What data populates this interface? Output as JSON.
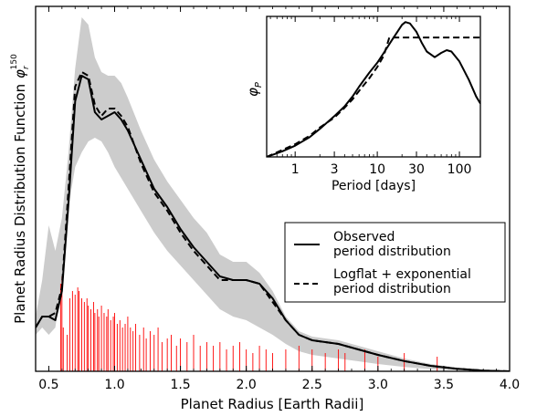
{
  "chart_data": [
    {
      "type": "line",
      "xlabel": "Planet Radius [Earth Radii]",
      "ylabel": "Planet Radius Distribution Function",
      "ylabel_symbol": "φ",
      "ylabel_sub": "r",
      "ylabel_sup": "150",
      "xlim": [
        0.4,
        4.0
      ],
      "ylim": [
        0,
        1.0
      ],
      "xticks": [
        0.5,
        1.0,
        1.5,
        2.0,
        2.5,
        3.0,
        3.5,
        4.0
      ],
      "xtick_labels": [
        "0.5",
        "1.0",
        "1.5",
        "2.0",
        "2.5",
        "3.0",
        "3.5",
        "4.0"
      ],
      "grid": false,
      "legend_position": "middle-right",
      "band": {
        "name": "uncertainty range",
        "color": "#cccccc",
        "x": [
          0.4,
          0.45,
          0.5,
          0.55,
          0.6,
          0.65,
          0.7,
          0.75,
          0.8,
          0.85,
          0.9,
          0.95,
          1.0,
          1.05,
          1.1,
          1.2,
          1.3,
          1.4,
          1.5,
          1.6,
          1.7,
          1.8,
          1.9,
          2.0,
          2.1,
          2.2,
          2.3,
          2.4,
          2.5,
          2.6,
          2.7,
          2.8,
          2.9,
          3.0,
          3.2,
          3.4,
          3.6,
          3.8,
          4.0
        ],
        "upper": [
          0.15,
          0.25,
          0.4,
          0.33,
          0.42,
          0.6,
          0.83,
          0.97,
          0.95,
          0.86,
          0.82,
          0.81,
          0.81,
          0.79,
          0.75,
          0.66,
          0.58,
          0.52,
          0.47,
          0.42,
          0.38,
          0.32,
          0.3,
          0.3,
          0.27,
          0.22,
          0.15,
          0.11,
          0.095,
          0.09,
          0.085,
          0.075,
          0.065,
          0.055,
          0.035,
          0.02,
          0.01,
          0.004,
          0.0
        ],
        "lower": [
          0.1,
          0.12,
          0.1,
          0.12,
          0.25,
          0.45,
          0.56,
          0.6,
          0.63,
          0.64,
          0.63,
          0.6,
          0.56,
          0.53,
          0.5,
          0.44,
          0.38,
          0.33,
          0.29,
          0.25,
          0.21,
          0.17,
          0.15,
          0.14,
          0.12,
          0.1,
          0.075,
          0.055,
          0.045,
          0.04,
          0.035,
          0.03,
          0.025,
          0.02,
          0.012,
          0.006,
          0.003,
          0.001,
          0.0
        ]
      },
      "series": [
        {
          "name": "Observed period distribution",
          "style": "solid",
          "color": "#000000",
          "x": [
            0.4,
            0.45,
            0.5,
            0.55,
            0.6,
            0.65,
            0.7,
            0.75,
            0.8,
            0.85,
            0.9,
            0.95,
            1.0,
            1.05,
            1.1,
            1.2,
            1.3,
            1.4,
            1.5,
            1.6,
            1.7,
            1.8,
            1.9,
            2.0,
            2.1,
            2.2,
            2.3,
            2.4,
            2.5,
            2.6,
            2.7,
            2.8,
            2.9,
            3.0,
            3.2,
            3.4,
            3.6,
            3.8,
            4.0
          ],
          "values": [
            0.12,
            0.15,
            0.15,
            0.14,
            0.22,
            0.46,
            0.74,
            0.81,
            0.8,
            0.71,
            0.69,
            0.7,
            0.71,
            0.69,
            0.66,
            0.58,
            0.5,
            0.45,
            0.39,
            0.34,
            0.3,
            0.26,
            0.25,
            0.25,
            0.24,
            0.2,
            0.14,
            0.1,
            0.085,
            0.08,
            0.075,
            0.065,
            0.055,
            0.045,
            0.028,
            0.015,
            0.007,
            0.002,
            0.0
          ]
        },
        {
          "name": "Logflat + exponential period distribution",
          "style": "dashed",
          "color": "#000000",
          "x": [
            0.4,
            0.45,
            0.5,
            0.55,
            0.6,
            0.65,
            0.7,
            0.75,
            0.8,
            0.85,
            0.9,
            0.95,
            1.0,
            1.05,
            1.1,
            1.2,
            1.3,
            1.4,
            1.5,
            1.6,
            1.7,
            1.8,
            1.9,
            2.0,
            2.1,
            2.2,
            2.3,
            2.4,
            2.5,
            2.6,
            2.7,
            2.8,
            2.9,
            3.0,
            3.2,
            3.4,
            3.6,
            3.8,
            4.0
          ],
          "values": [
            0.12,
            0.15,
            0.15,
            0.16,
            0.23,
            0.5,
            0.78,
            0.82,
            0.81,
            0.73,
            0.7,
            0.72,
            0.72,
            0.7,
            0.67,
            0.57,
            0.49,
            0.44,
            0.38,
            0.33,
            0.29,
            0.25,
            0.25,
            0.25,
            0.24,
            0.19,
            0.14,
            0.1,
            0.085,
            0.08,
            0.075,
            0.065,
            0.055,
            0.045,
            0.028,
            0.015,
            0.007,
            0.002,
            0.0
          ]
        }
      ],
      "planets": {
        "name": "individual planet radii",
        "color": "#ff0000",
        "x": [
          0.59,
          0.6,
          0.61,
          0.64,
          0.66,
          0.68,
          0.7,
          0.72,
          0.73,
          0.75,
          0.77,
          0.79,
          0.8,
          0.82,
          0.84,
          0.85,
          0.87,
          0.88,
          0.9,
          0.92,
          0.94,
          0.95,
          0.97,
          0.99,
          1.0,
          1.02,
          1.04,
          1.06,
          1.08,
          1.1,
          1.12,
          1.14,
          1.16,
          1.19,
          1.22,
          1.24,
          1.27,
          1.3,
          1.33,
          1.36,
          1.4,
          1.43,
          1.47,
          1.5,
          1.55,
          1.6,
          1.65,
          1.7,
          1.75,
          1.8,
          1.85,
          1.9,
          1.95,
          2.0,
          2.05,
          2.1,
          2.15,
          2.2,
          2.3,
          2.4,
          2.5,
          2.6,
          2.7,
          2.75,
          2.9,
          3.0,
          3.2,
          3.45
        ],
        "heights": [
          0.24,
          0.26,
          0.12,
          0.1,
          0.2,
          0.22,
          0.21,
          0.23,
          0.22,
          0.2,
          0.19,
          0.2,
          0.18,
          0.17,
          0.19,
          0.16,
          0.17,
          0.15,
          0.18,
          0.16,
          0.15,
          0.17,
          0.14,
          0.15,
          0.16,
          0.13,
          0.14,
          0.12,
          0.13,
          0.15,
          0.12,
          0.11,
          0.13,
          0.1,
          0.12,
          0.09,
          0.11,
          0.1,
          0.12,
          0.08,
          0.09,
          0.1,
          0.07,
          0.09,
          0.08,
          0.1,
          0.07,
          0.08,
          0.07,
          0.08,
          0.06,
          0.07,
          0.08,
          0.06,
          0.05,
          0.07,
          0.06,
          0.05,
          0.06,
          0.07,
          0.06,
          0.05,
          0.06,
          0.05,
          0.06,
          0.04,
          0.05,
          0.04
        ]
      },
      "legend": [
        {
          "line1": "Observed",
          "line2": "period distribution",
          "style": "solid"
        },
        {
          "line1": "Logflat + exponential",
          "line2": "period distribution",
          "style": "dashed"
        }
      ]
    },
    {
      "type": "line",
      "role": "inset",
      "xlabel": "Period [days]",
      "ylabel_symbol": "φ",
      "ylabel_sub": "P",
      "xscale": "log",
      "xlim": [
        0.45,
        180
      ],
      "ylim": [
        0,
        1.0
      ],
      "xticks": [
        1,
        3,
        10,
        30,
        100
      ],
      "xtick_labels": [
        "1",
        "3",
        "10",
        "30",
        "100"
      ],
      "grid": false,
      "series": [
        {
          "name": "Observed period distribution",
          "style": "solid",
          "x": [
            0.45,
            0.7,
            1,
            1.5,
            2,
            3,
            4,
            5,
            6,
            8,
            10,
            12,
            15,
            18,
            20,
            22,
            25,
            30,
            35,
            40,
            50,
            60,
            70,
            80,
            100,
            130,
            160,
            180
          ],
          "values": [
            0.0,
            0.04,
            0.08,
            0.14,
            0.2,
            0.29,
            0.36,
            0.43,
            0.5,
            0.6,
            0.67,
            0.74,
            0.83,
            0.9,
            0.94,
            0.96,
            0.95,
            0.89,
            0.81,
            0.75,
            0.71,
            0.74,
            0.76,
            0.75,
            0.68,
            0.55,
            0.43,
            0.38
          ]
        },
        {
          "name": "Logflat + exponential period distribution",
          "style": "dashed",
          "x": [
            0.45,
            0.7,
            1,
            1.5,
            2,
            3,
            4,
            5,
            6,
            8,
            10,
            12,
            14,
            20,
            30,
            50,
            100,
            150,
            180
          ],
          "values": [
            0.0,
            0.05,
            0.09,
            0.15,
            0.21,
            0.28,
            0.35,
            0.41,
            0.47,
            0.56,
            0.64,
            0.72,
            0.85,
            0.85,
            0.85,
            0.85,
            0.85,
            0.85,
            0.85
          ]
        }
      ]
    }
  ]
}
